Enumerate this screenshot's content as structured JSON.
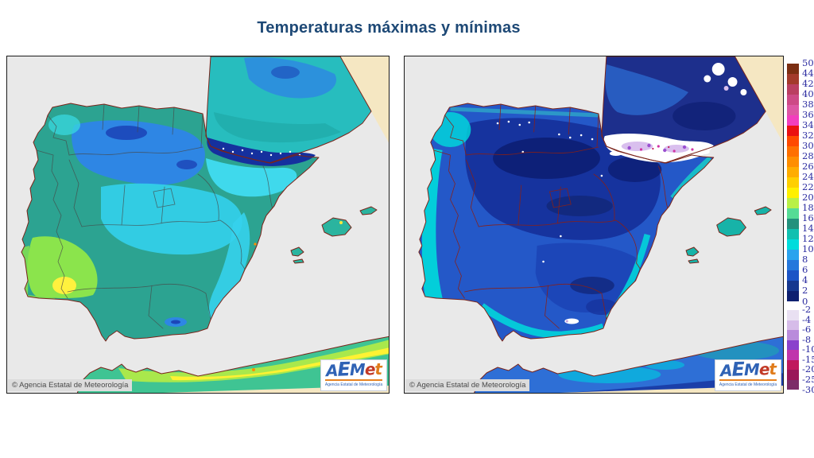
{
  "title": "Temperaturas máximas y mínimas",
  "panels": {
    "copyright": "© Agencia Estatal de Meteorología",
    "logo": {
      "letters": [
        "A",
        "E",
        "M",
        "e",
        "t"
      ],
      "caption": "Agencia Estatal de Meteorología"
    }
  },
  "colorbar": {
    "sections": [
      {
        "block_h": 13,
        "bottom_label": "0",
        "blocks": [
          {
            "label": "50",
            "color": "#7B2E12"
          },
          {
            "label": "44",
            "color": "#A33A2B"
          },
          {
            "label": "42",
            "color": "#BA3F61"
          },
          {
            "label": "40",
            "color": "#CD4A86"
          },
          {
            "label": "38",
            "color": "#DD57A4"
          },
          {
            "label": "36",
            "color": "#F23FBE"
          },
          {
            "label": "34",
            "color": "#EB1111"
          },
          {
            "label": "32",
            "color": "#FF4A00"
          },
          {
            "label": "30",
            "color": "#FF7000"
          },
          {
            "label": "28",
            "color": "#FF8E00"
          },
          {
            "label": "26",
            "color": "#FFAD00"
          },
          {
            "label": "24",
            "color": "#FFCF00"
          },
          {
            "label": "22",
            "color": "#FFF000"
          },
          {
            "label": "20",
            "color": "#B9F046"
          },
          {
            "label": "18",
            "color": "#55DC96"
          },
          {
            "label": "16",
            "color": "#23917D"
          },
          {
            "label": "14",
            "color": "#10C0B0"
          },
          {
            "label": "12",
            "color": "#00DCDC"
          },
          {
            "label": "10",
            "color": "#2AA3EE"
          },
          {
            "label": "8",
            "color": "#2578DC"
          },
          {
            "label": "6",
            "color": "#1C55C6"
          },
          {
            "label": "4",
            "color": "#16388F"
          },
          {
            "label": "2",
            "color": "#0E2070"
          }
        ]
      },
      {
        "block_h": 12.5,
        "bottom_label": "-30",
        "blocks": [
          {
            "label": "-2",
            "color": "#E9E0F2"
          },
          {
            "label": "-4",
            "color": "#D6BCE9"
          },
          {
            "label": "-6",
            "color": "#B98BDB"
          },
          {
            "label": "-8",
            "color": "#8A41CC"
          },
          {
            "label": "-10",
            "color": "#C035AC"
          },
          {
            "label": "-15",
            "color": "#C0195C"
          },
          {
            "label": "-20",
            "color": "#9A1758"
          },
          {
            "label": "-25",
            "color": "#7C2E68"
          }
        ]
      }
    ]
  },
  "palette": {
    "sea": "#E9E9E9",
    "outside_domain": "#F5E7C2",
    "title_color": "#1E4976",
    "coastline": "#7A241A",
    "province_border_max_map": "#474747",
    "province_border_min_map": "#8B2015",
    "scale_label_color": "#2B2BA0",
    "max_map_base": "#2CA391",
    "min_map_base": "#2458C8"
  }
}
